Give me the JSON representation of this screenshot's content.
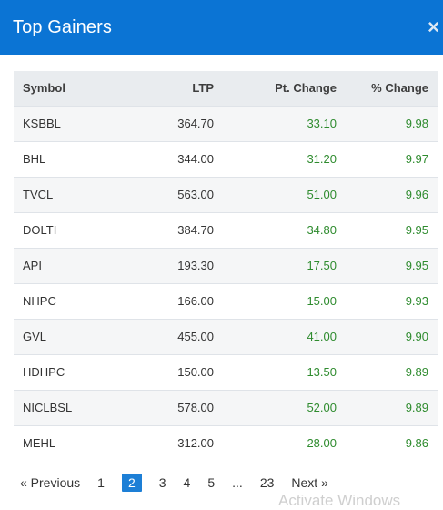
{
  "header": {
    "title": "Top Gainers",
    "close": "×"
  },
  "table": {
    "columns": [
      "Symbol",
      "LTP",
      "Pt. Change",
      "% Change"
    ],
    "rows": [
      [
        "KSBBL",
        "364.70",
        "33.10",
        "9.98"
      ],
      [
        "BHL",
        "344.00",
        "31.20",
        "9.97"
      ],
      [
        "TVCL",
        "563.00",
        "51.00",
        "9.96"
      ],
      [
        "DOLTI",
        "384.70",
        "34.80",
        "9.95"
      ],
      [
        "API",
        "193.30",
        "17.50",
        "9.95"
      ],
      [
        "NHPC",
        "166.00",
        "15.00",
        "9.93"
      ],
      [
        "GVL",
        "455.00",
        "41.00",
        "9.90"
      ],
      [
        "HDHPC",
        "150.00",
        "13.50",
        "9.89"
      ],
      [
        "NICLBSL",
        "578.00",
        "52.00",
        "9.89"
      ],
      [
        "MEHL",
        "312.00",
        "28.00",
        "9.86"
      ]
    ]
  },
  "pagination": {
    "prev": "«  Previous",
    "pages": [
      "1",
      "2",
      "3",
      "4",
      "5",
      "...",
      "23"
    ],
    "active": "2",
    "next": "Next  »"
  },
  "watermark": "Activate Windows",
  "colors": {
    "header": "#0b74d4",
    "positive": "#2e8b2e",
    "active_page": "#1d7fd6"
  }
}
